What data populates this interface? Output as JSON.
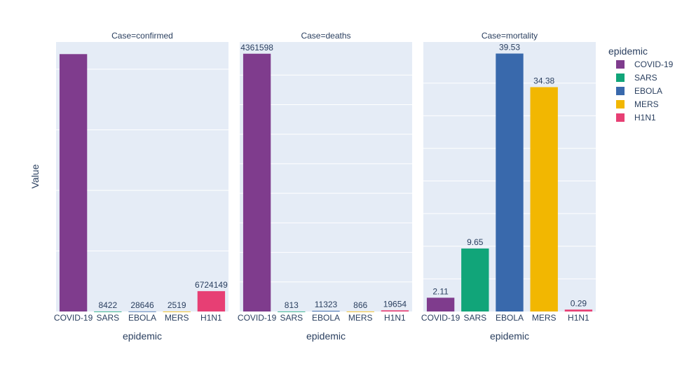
{
  "chart_data": {
    "type": "bar",
    "ylabel": "Value",
    "legend": {
      "title": "epidemic",
      "placement": "right",
      "items": [
        {
          "name": "COVID-19",
          "color": "#7f3c8d"
        },
        {
          "name": "SARS",
          "color": "#11a579"
        },
        {
          "name": "EBOLA",
          "color": "#3969ac"
        },
        {
          "name": "MERS",
          "color": "#f2b701"
        },
        {
          "name": "H1N1",
          "color": "#e73f74"
        }
      ]
    },
    "facets": [
      {
        "title": "Case=confirmed",
        "xlabel": "epidemic",
        "categories": [
          "COVID-19",
          "SARS",
          "EBOLA",
          "MERS",
          "H1N1"
        ],
        "values": [
          85000000,
          8422,
          28646,
          2519,
          6724149
        ],
        "labels": [
          "",
          "8422",
          "28646",
          "2519",
          "6724149"
        ],
        "ylim": [
          0,
          89000000
        ]
      },
      {
        "title": "Case=deaths",
        "xlabel": "epidemic",
        "categories": [
          "COVID-19",
          "SARS",
          "EBOLA",
          "MERS",
          "H1N1"
        ],
        "values": [
          4361598,
          813,
          11323,
          866,
          19654
        ],
        "labels": [
          "4361598",
          "813",
          "11323",
          "866",
          "19654"
        ],
        "ylim": [
          0,
          4560000
        ]
      },
      {
        "title": "Case=mortality",
        "xlabel": "epidemic",
        "categories": [
          "COVID-19",
          "SARS",
          "EBOLA",
          "MERS",
          "H1N1"
        ],
        "values": [
          2.11,
          9.65,
          39.53,
          34.38,
          0.29
        ],
        "labels": [
          "2.11",
          "9.65",
          "39.53",
          "34.38",
          "0.29"
        ],
        "ylim": [
          0,
          41.3
        ]
      }
    ]
  }
}
